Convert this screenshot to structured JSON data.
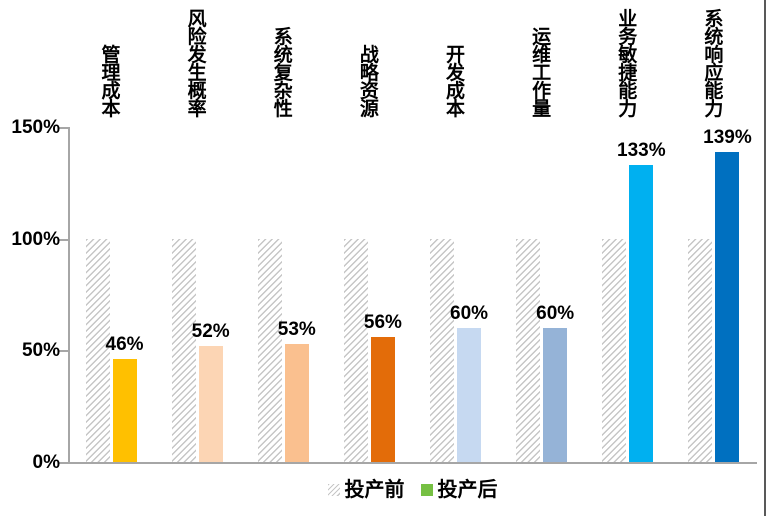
{
  "chart_data": {
    "type": "bar",
    "title": "",
    "categories": [
      "管理成本",
      "风险发生概率",
      "系统复杂性",
      "战略资源",
      "开发成本",
      "运维工作量",
      "业务敏捷能力",
      "系统响应能力"
    ],
    "series": [
      {
        "name": "投产前",
        "values": [
          100,
          100,
          100,
          100,
          100,
          100,
          100,
          100
        ],
        "fill": "hatch",
        "hatch_color": "#C6C6C6"
      },
      {
        "name": "投产后",
        "values": [
          46,
          52,
          53,
          56,
          60,
          60,
          133,
          139
        ],
        "colors": [
          "#FFC000",
          "#FCD5B4",
          "#FAC08F",
          "#E36C09",
          "#C6D9F1",
          "#95B3D7",
          "#00B0F0",
          "#0070C0"
        ]
      }
    ],
    "data_labels": [
      "46%",
      "52%",
      "53%",
      "56%",
      "60%",
      "60%",
      "133%",
      "139%"
    ],
    "y_ticks": [
      {
        "label": "150%",
        "value": 150
      },
      {
        "label": "100%",
        "value": 100
      },
      {
        "label": "50%",
        "value": 50
      },
      {
        "label": "0%",
        "value": 0
      }
    ],
    "ylim": [
      0,
      150
    ],
    "grid": false,
    "axis_color": "#A6A6A6",
    "legend": {
      "position": "bottom",
      "items": [
        {
          "label": "投产前",
          "swatch": "hatch"
        },
        {
          "label": "投产后",
          "swatch_color": "#76C043"
        }
      ]
    }
  }
}
